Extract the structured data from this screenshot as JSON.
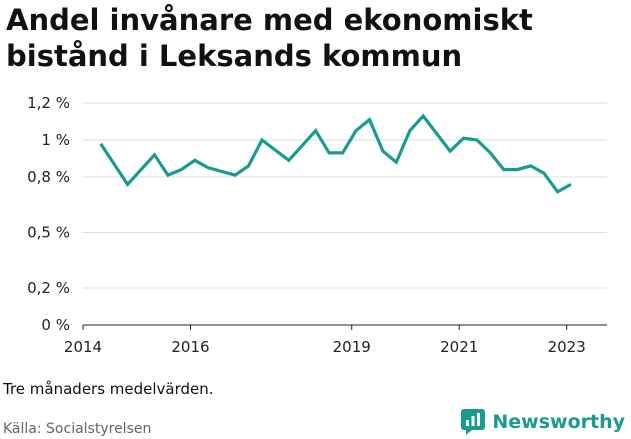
{
  "header": {
    "title_line1": "Andel invånare med ekonomiskt",
    "title_line2": "bistånd i Leksands kommun"
  },
  "chart_data": {
    "type": "line",
    "title": "Andel invånare med ekonomiskt bistånd i Leksands kommun",
    "xlabel": "",
    "ylabel": "",
    "ylim": [
      0,
      1.2
    ],
    "xlim": [
      2014,
      2023.75
    ],
    "grid": true,
    "y_ticks": [
      {
        "value": 0,
        "label": "0 %"
      },
      {
        "value": 0.2,
        "label": "0,2 %"
      },
      {
        "value": 0.5,
        "label": "0,5 %"
      },
      {
        "value": 0.8,
        "label": "0,8 %"
      },
      {
        "value": 1.0,
        "label": "1 %"
      },
      {
        "value": 1.2,
        "label": "1,2 %"
      }
    ],
    "x_ticks": [
      {
        "value": 2014,
        "label": "2014"
      },
      {
        "value": 2016,
        "label": "2016"
      },
      {
        "value": 2019,
        "label": "2019"
      },
      {
        "value": 2021,
        "label": "2021"
      },
      {
        "value": 2023,
        "label": "2023"
      }
    ],
    "series": [
      {
        "name": "Andel invånare med ekonomiskt bistånd",
        "color": "#1a9b8f",
        "x": [
          2014.33,
          2014.83,
          2015.33,
          2015.58,
          2015.83,
          2016.08,
          2016.33,
          2016.83,
          2017.08,
          2017.33,
          2017.83,
          2018.33,
          2018.58,
          2018.83,
          2019.08,
          2019.33,
          2019.58,
          2019.83,
          2020.08,
          2020.33,
          2020.83,
          2021.08,
          2021.33,
          2021.58,
          2021.83,
          2022.08,
          2022.33,
          2022.58,
          2022.83,
          2023.08
        ],
        "values": [
          0.98,
          0.76,
          0.92,
          0.81,
          0.84,
          0.89,
          0.85,
          0.81,
          0.86,
          1.0,
          0.89,
          1.05,
          0.93,
          0.93,
          1.05,
          1.11,
          0.94,
          0.88,
          1.05,
          1.13,
          0.94,
          1.01,
          1.0,
          0.93,
          0.84,
          0.84,
          0.86,
          0.82,
          0.72,
          0.76
        ]
      }
    ]
  },
  "footer": {
    "note": "Tre månaders medelvärden.",
    "source": "Källa: Socialstyrelsen",
    "brand": "Newsworthy"
  }
}
